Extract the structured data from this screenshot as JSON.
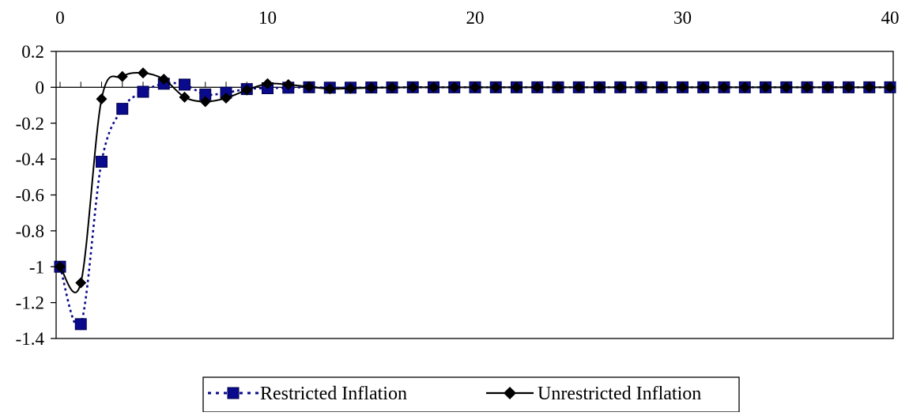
{
  "chart_data": {
    "type": "line",
    "title": "",
    "xlabel": "",
    "ylabel": "",
    "xlim": [
      0,
      40
    ],
    "ylim": [
      -1.4,
      0.2
    ],
    "x_ticks": [
      "0",
      "10",
      "20",
      "30",
      "40"
    ],
    "y_ticks": [
      "0.2",
      "0",
      "-0.2",
      "-0.4",
      "-0.6",
      "-0.8",
      "-1",
      "-1.2",
      "-1.4"
    ],
    "x_axis_position": "top",
    "grid": false,
    "legend_position": "bottom",
    "series": [
      {
        "name": "Restricted Inflation",
        "color": "#0a0a8c",
        "line_style": "dotted",
        "marker": "square",
        "smooth": true,
        "values": [
          -1.0,
          -1.32,
          -0.415,
          -0.12,
          -0.025,
          0.02,
          0.015,
          -0.04,
          -0.03,
          -0.01,
          -0.005,
          -0.002,
          0.0,
          -0.002,
          -0.002,
          -0.001,
          -0.001,
          0,
          0,
          0,
          0,
          0,
          0,
          0,
          0,
          0,
          0,
          0,
          0,
          0,
          0,
          0,
          0,
          0,
          0,
          0,
          0,
          0,
          0,
          0,
          0
        ]
      },
      {
        "name": "Unrestricted Inflation",
        "color": "#000000",
        "line_style": "solid",
        "marker": "diamond",
        "smooth": true,
        "values": [
          -1.0,
          -1.09,
          -0.065,
          0.06,
          0.08,
          0.045,
          -0.055,
          -0.08,
          -0.06,
          -0.015,
          0.02,
          0.015,
          0.003,
          -0.008,
          -0.006,
          -0.003,
          -0.001,
          0,
          0,
          0,
          0,
          0,
          0,
          0,
          0,
          0,
          0,
          0,
          0,
          0,
          0,
          0,
          0,
          0,
          0,
          0,
          0,
          0,
          0,
          0,
          0
        ]
      }
    ]
  }
}
